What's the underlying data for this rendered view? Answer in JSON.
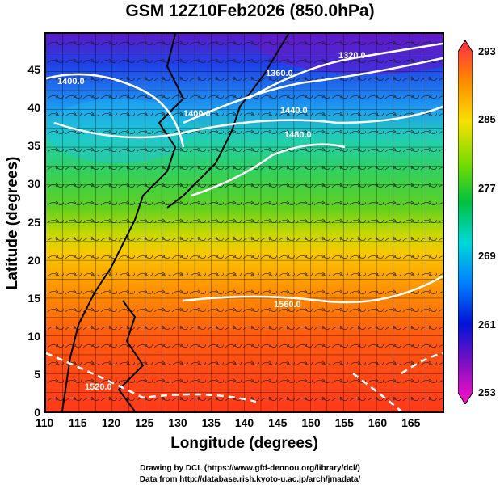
{
  "title": "GSM 12Z10Feb2026 (850.0hPa)",
  "chart_data": {
    "type": "heatmap",
    "title": "GSM 12Z10Feb2026 (850.0hPa)",
    "xlabel": "Longitude (degrees)",
    "ylabel": "Latitude  (degrees)",
    "xlim": [
      110,
      170
    ],
    "ylim": [
      0,
      50
    ],
    "x_ticks": [
      "110",
      "115",
      "120",
      "125",
      "130",
      "135",
      "140",
      "145",
      "150",
      "155",
      "160",
      "165"
    ],
    "y_ticks": [
      "0",
      "5",
      "10",
      "15",
      "20",
      "25",
      "30",
      "35",
      "40",
      "45"
    ],
    "colorbar": {
      "range": [
        253,
        293
      ],
      "labels": [
        "293",
        "285",
        "277",
        "269",
        "261",
        "253"
      ],
      "colors": [
        "#ff2a4a",
        "#ff8a00",
        "#f7e000",
        "#7ddc00",
        "#00c040",
        "#00d8d8",
        "#0080ff",
        "#0014d8",
        "#8010c0",
        "#ff10c8"
      ]
    },
    "contour_labels": [
      "1400.0",
      "1320.0",
      "1360.0",
      "1400.0",
      "1440.0",
      "1480.0",
      "1560.0",
      "1520.0"
    ],
    "grid": true,
    "fields": [
      "temperature (shaded)",
      "geopotential height (contours)",
      "wind streamlines"
    ]
  },
  "credits": {
    "line1": "Drawing by DCL (https://www.gfd-dennou.org/library/dcl/)",
    "line2": "Data from http://database.rish.kyoto-u.ac.jp/arch/jmadata/"
  }
}
